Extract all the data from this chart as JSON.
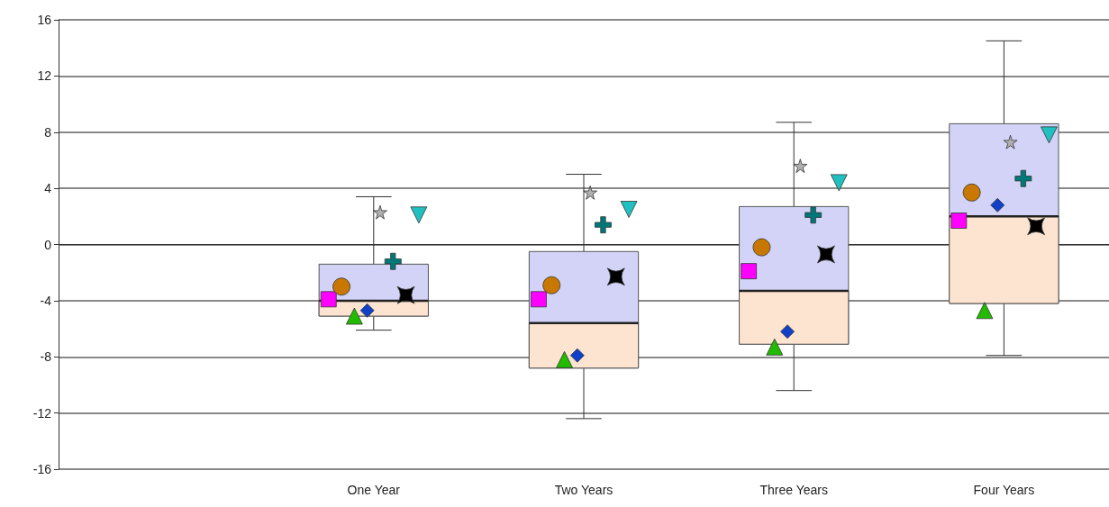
{
  "chart_data": {
    "type": "box",
    "categories": [
      null,
      "One Year",
      "Two Years",
      "Three Years",
      "Four Years"
    ],
    "ylim": [
      -16,
      16
    ],
    "yticks": [
      -16,
      -12,
      -8,
      -4,
      0,
      4,
      8,
      12,
      16
    ],
    "grid": "y",
    "series": [
      {
        "color": "#d3d3f8",
        "boxes": [
          null,
          {
            "low": -6.1,
            "q1": -5.1,
            "median": -4.0,
            "q3": -1.4,
            "high": 3.4
          },
          {
            "low": -12.4,
            "q1": -8.8,
            "median": -5.6,
            "q3": -0.5,
            "high": 5.0
          },
          {
            "low": -10.4,
            "q1": -7.1,
            "median": -3.3,
            "q3": 2.7,
            "high": 8.7
          },
          {
            "low": -7.9,
            "q1": -4.2,
            "median": 2.0,
            "q3": 8.6,
            "high": 14.5
          }
        ]
      },
      {
        "type": "scatter",
        "marker": "square",
        "color": "#ff00ff",
        "x": [
          "One Year",
          "Two Years",
          "Three Years",
          "Four Years"
        ],
        "values": [
          -3.9,
          -3.9,
          -1.9,
          1.7
        ]
      },
      {
        "type": "scatter",
        "marker": "circle",
        "color": "#c87800",
        "x": [
          "One Year",
          "Two Years",
          "Three Years",
          "Four Years"
        ],
        "values": [
          -3.0,
          -2.9,
          -0.2,
          3.7
        ]
      },
      {
        "type": "scatter",
        "marker": "triangle",
        "color": "#22bb00",
        "x": [
          "One Year",
          "Two Years",
          "Three Years",
          "Four Years"
        ],
        "values": [
          -5.1,
          -8.2,
          -7.3,
          -4.7
        ]
      },
      {
        "type": "scatter",
        "marker": "diamond",
        "color": "#1040c8",
        "x": [
          "One Year",
          "Two Years",
          "Three Years",
          "Four Years"
        ],
        "values": [
          -4.7,
          -7.9,
          -6.2,
          2.8
        ]
      },
      {
        "type": "scatter",
        "marker": "star",
        "color": "#b0b0b0",
        "x": [
          "One Year",
          "Two Years",
          "Three Years",
          "Four Years"
        ],
        "values": [
          2.3,
          3.7,
          5.6,
          7.3
        ]
      },
      {
        "type": "scatter",
        "marker": "plus",
        "color": "#007878",
        "x": [
          "One Year",
          "Two Years",
          "Three Years",
          "Four Years"
        ],
        "values": [
          -1.2,
          1.4,
          2.1,
          4.7
        ]
      },
      {
        "type": "scatter",
        "marker": "cross",
        "color": "#000000",
        "x": [
          "One Year",
          "Two Years",
          "Three Years",
          "Four Years"
        ],
        "values": [
          -3.6,
          -2.3,
          -0.7,
          1.3
        ]
      },
      {
        "type": "scatter",
        "marker": "triangle-down",
        "color": "#20c0c0",
        "x": [
          "One Year",
          "Two Years",
          "Three Years",
          "Four Years"
        ],
        "values": [
          2.1,
          2.5,
          4.4,
          7.8
        ]
      }
    ]
  }
}
